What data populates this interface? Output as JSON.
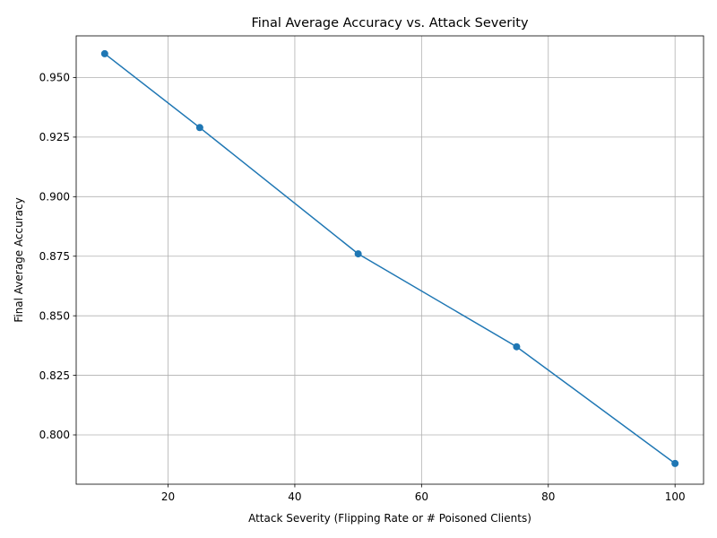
{
  "chart_data": {
    "type": "line",
    "title": "Final Average Accuracy vs. Attack Severity",
    "xlabel": "Attack Severity (Flipping Rate or # Poisoned Clients)",
    "ylabel": "Final Average Accuracy",
    "xlim": [
      5.5,
      104.5
    ],
    "ylim": [
      0.7793,
      0.9675
    ],
    "xticks": [
      20,
      40,
      60,
      80,
      100
    ],
    "yticks": [
      0.8,
      0.825,
      0.85,
      0.875,
      0.9,
      0.925,
      0.95
    ],
    "grid": true,
    "markers": true,
    "series": [
      {
        "x": [
          10,
          25,
          50,
          75,
          100
        ],
        "y": [
          0.96,
          0.929,
          0.876,
          0.837,
          0.788
        ],
        "color": "#1f77b4"
      }
    ]
  }
}
